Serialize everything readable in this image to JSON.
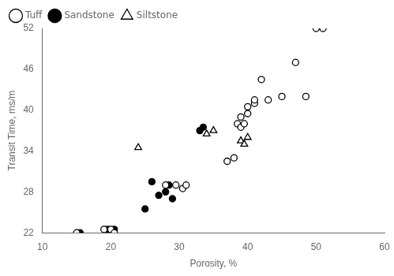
{
  "chart_data": {
    "type": "scatter",
    "xlabel": "Porosity, %",
    "ylabel": "Transit Time, ms/m",
    "xlim": [
      10,
      60
    ],
    "xticks": [
      10,
      20,
      30,
      40,
      50,
      60
    ],
    "ylim": [
      22,
      52
    ],
    "yticks": [
      22,
      28,
      34,
      40,
      46,
      52
    ],
    "grid": false,
    "legend": "upper left",
    "series": [
      {
        "name": "Tuff",
        "marker": "circle",
        "color": "#ffffff",
        "x": [
          15,
          19,
          20,
          20.5,
          28,
          29.5,
          30.5,
          31,
          37,
          38,
          38.5,
          39,
          39,
          39.5,
          40,
          40,
          41,
          41,
          42,
          43,
          45,
          47,
          48.5,
          50,
          51
        ],
        "values": [
          22,
          22.5,
          22.5,
          22,
          29,
          29,
          28.5,
          29,
          32.5,
          33,
          38,
          37.5,
          39,
          38,
          39.5,
          40.5,
          41,
          41.5,
          44.5,
          41.5,
          42,
          47,
          42,
          52,
          52
        ]
      },
      {
        "name": "Sandstone",
        "marker": "circle",
        "color": "#000000",
        "x": [
          15.5,
          19.5,
          20.5,
          25,
          26,
          27,
          28,
          28.5,
          29,
          33,
          33.5
        ],
        "values": [
          22,
          22.5,
          22.5,
          25.5,
          29.5,
          27.5,
          28,
          29,
          27,
          37,
          37.5
        ]
      },
      {
        "name": "Siltstone",
        "marker": "triangle",
        "color": "#ffffff",
        "x": [
          24,
          34,
          35,
          39,
          39.5,
          40
        ],
        "values": [
          34.5,
          36.5,
          37,
          35.5,
          35,
          36
        ]
      }
    ]
  }
}
